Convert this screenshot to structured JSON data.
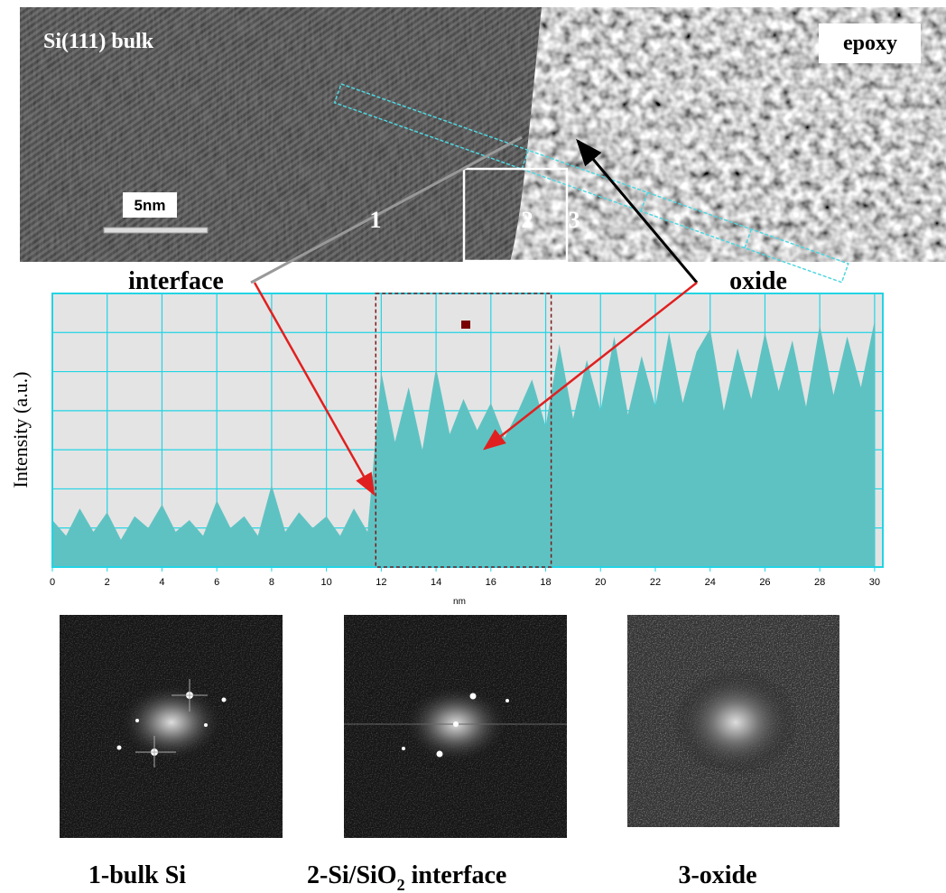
{
  "labels": {
    "bulk": "Si(111) bulk",
    "epoxy": "epoxy",
    "scale_bar": "5nm",
    "region_1": "1",
    "region_2": "2",
    "region_3": "3",
    "interface": "interface",
    "oxide": "oxide"
  },
  "chart_data": {
    "type": "area",
    "y_label": "Intensity (a.u.)",
    "x_label": "nm",
    "color": "#5fc2c2",
    "xlim": [
      0,
      30.3
    ],
    "xticks": [
      0,
      2,
      4,
      6,
      8,
      10,
      12,
      14,
      16,
      18,
      20,
      22,
      24,
      26,
      28,
      30
    ],
    "ylim": [
      0,
      7
    ],
    "ygrid": [
      1,
      2,
      3,
      4,
      5,
      6
    ],
    "grid": true,
    "selection": [
      11.8,
      18.2
    ],
    "x": [
      0,
      0.5,
      1,
      1.5,
      2,
      2.5,
      3,
      3.5,
      4,
      4.5,
      5,
      5.5,
      6,
      6.5,
      7,
      7.5,
      8,
      8.5,
      9,
      9.5,
      10,
      10.5,
      11,
      11.5,
      12,
      12.5,
      13,
      13.5,
      14,
      14.5,
      15,
      15.5,
      16,
      16.5,
      17,
      17.5,
      18,
      18.5,
      19,
      19.5,
      20,
      20.5,
      21,
      21.5,
      22,
      22.5,
      23,
      23.5,
      24,
      24.5,
      25,
      25.5,
      26,
      26.5,
      27,
      27.5,
      28,
      28.5,
      29,
      29.5,
      30
    ],
    "values": [
      1.2,
      0.8,
      1.5,
      0.9,
      1.4,
      0.7,
      1.3,
      1.0,
      1.6,
      0.9,
      1.2,
      0.8,
      1.7,
      1.0,
      1.3,
      0.8,
      2.1,
      0.9,
      1.4,
      1.0,
      1.3,
      0.8,
      1.5,
      0.9,
      5.0,
      3.2,
      4.6,
      3.0,
      5.1,
      3.4,
      4.3,
      3.5,
      4.2,
      3.3,
      4.0,
      4.8,
      3.6,
      5.7,
      3.8,
      5.3,
      4.0,
      5.9,
      3.9,
      5.4,
      4.1,
      6.0,
      4.2,
      5.5,
      6.1,
      4.0,
      5.6,
      4.3,
      6.0,
      4.5,
      5.8,
      4.1,
      6.2,
      4.4,
      5.9,
      4.6,
      6.3
    ]
  },
  "captions": {
    "bulk": "1-bulk Si",
    "interface_pre": "2-Si/SiO",
    "interface_sub": "2",
    "interface_post": " interface",
    "oxide": "3-oxide"
  }
}
